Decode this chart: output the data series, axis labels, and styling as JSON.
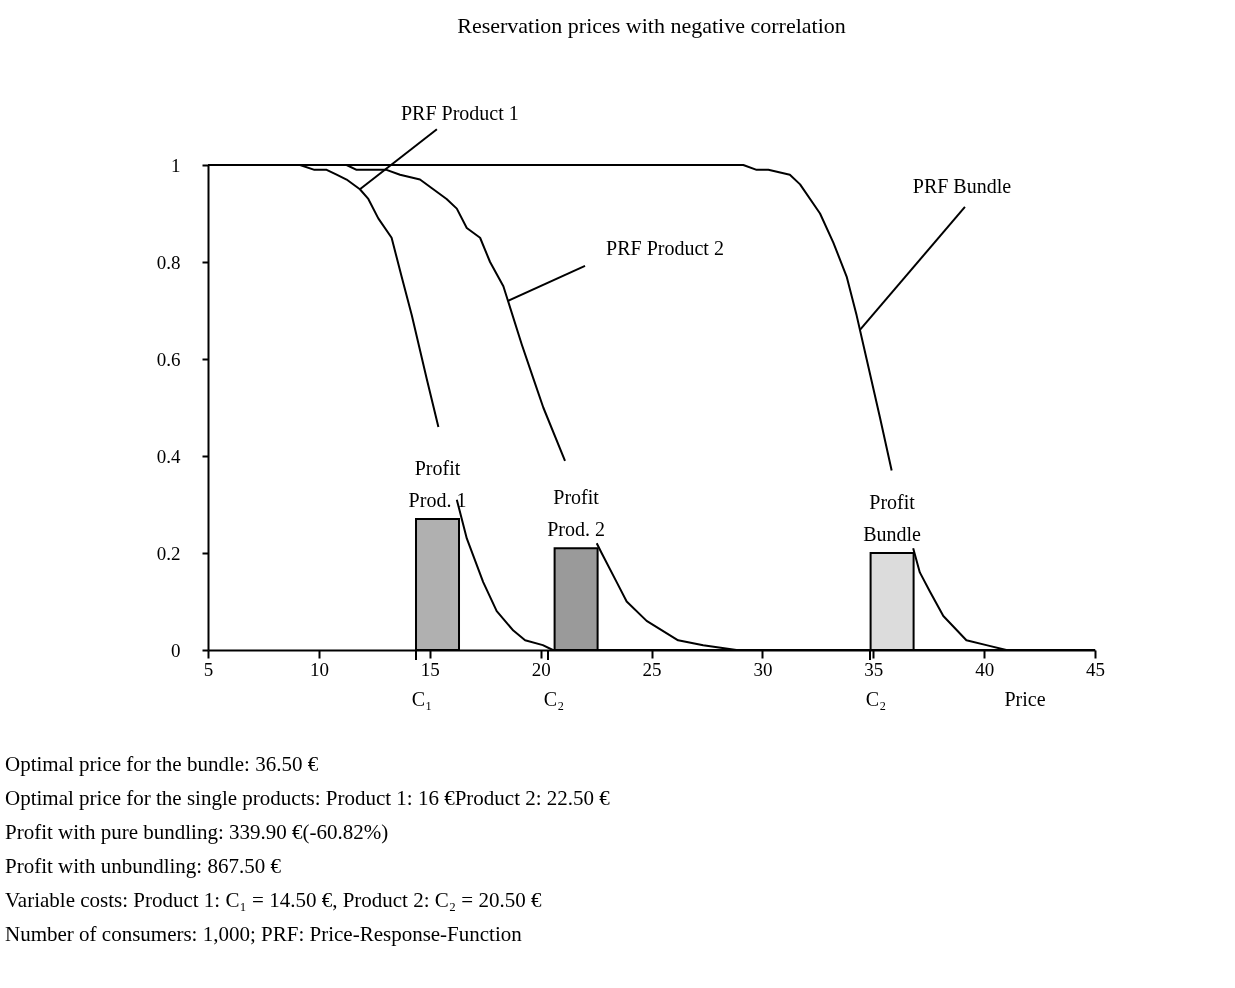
{
  "chart_data": {
    "type": "line",
    "title": "Reservation prices with negative correlation",
    "xlabel": "Price",
    "xlim": [
      5,
      45
    ],
    "xticks": [
      5,
      10,
      15,
      20,
      25,
      30,
      35,
      40,
      45
    ],
    "ylim": [
      0,
      1
    ],
    "yticks": [
      0,
      0.2,
      0.4,
      0.6,
      0.8,
      1
    ],
    "grid": false,
    "marker": "none",
    "line_style": "solid",
    "series": [
      {
        "color": "#000000",
        "x": [
          5,
          9.15,
          9.8,
          10.35,
          10.8,
          11.25,
          11.85,
          12.23,
          12.68,
          13.28,
          13.73,
          14.19,
          14.86,
          15.39,
          15.8,
          16.22,
          16.67,
          17.41,
          18.02,
          18.77,
          19.3,
          20.1,
          20.55,
          45
        ],
        "values": [
          1,
          1,
          0.99,
          0.99,
          0.98,
          0.97,
          0.95,
          0.93,
          0.89,
          0.85,
          0.77,
          0.69,
          0.56,
          0.46,
          null,
          0.31,
          0.23,
          0.14,
          0.08,
          0.04,
          0.02,
          0.01,
          0,
          0
        ]
      },
      {
        "color": "#000000",
        "x": [
          5,
          11.25,
          11.7,
          13.05,
          13.66,
          14.56,
          15.16,
          15.76,
          16.22,
          16.67,
          17.27,
          17.72,
          18.32,
          19.15,
          19.67,
          20.12,
          21.1,
          21.8,
          22.53,
          22.75,
          23.43,
          23.88,
          24.78,
          26.2,
          27.33,
          28.83,
          29.3,
          45
        ],
        "values": [
          1,
          1,
          0.99,
          0.99,
          0.98,
          0.97,
          0.95,
          0.93,
          0.91,
          0.87,
          0.85,
          0.8,
          0.75,
          0.63,
          0.56,
          0.5,
          0.39,
          null,
          0.22,
          0.2,
          0.14,
          0.1,
          0.06,
          0.02,
          0.01,
          0,
          0,
          0
        ]
      },
      {
        "color": "#000000",
        "x": [
          5,
          29.14,
          29.74,
          30.27,
          31.24,
          31.7,
          32.6,
          33.2,
          33.8,
          34.25,
          34.7,
          35.3,
          35.83,
          36.3,
          36.8,
          37.1,
          37.56,
          38.16,
          39.2,
          40.1,
          41.0,
          45
        ],
        "values": [
          1,
          1,
          0.99,
          0.99,
          0.98,
          0.96,
          0.9,
          0.84,
          0.77,
          0.69,
          0.6,
          0.48,
          0.37,
          null,
          0.21,
          0.16,
          0.12,
          0.07,
          0.02,
          0.01,
          0,
          0
        ]
      },
      {
        "type": "bar",
        "colors": [
          "#b0b0b0",
          "#9a9a9a",
          "#dcdcdc"
        ],
        "x": [
          15.35,
          21.6,
          35.85
        ],
        "values": [
          0.27,
          0.21,
          0.2
        ]
      }
    ],
    "annotations": [
      {
        "text": "PRF Product 1",
        "x": 11.85,
        "y": 0.95
      },
      {
        "text": "PRF Product 2",
        "x": 18.53,
        "y": 0.72
      },
      {
        "text": "PRF Bundle",
        "x": 34.4,
        "y": 0.66
      },
      {
        "text": "Profit Prod. 1",
        "x": 15.35,
        "y": 0.27
      },
      {
        "text": "Profit Prod. 2",
        "x": 21.6,
        "y": 0.21
      },
      {
        "text": "Profit Bundle",
        "x": 35.85,
        "y": 0.2
      },
      "C₁",
      "C₂",
      "C₂",
      "Optimal price for the bundle: 36.50 €",
      "Optimal price for the single products: Product 1: 16 €Product 2: 22.50 €",
      "Profit with pure bundling: 339.90 €(-60.82%)",
      "Profit with unbundling: 867.50 €",
      "Variable costs: Product 1: C₁ = 14.50 €, Product 2: C₂ = 20.50 €",
      "Number of consumers: 1,000; PRF: Price-Response-Function"
    ]
  }
}
